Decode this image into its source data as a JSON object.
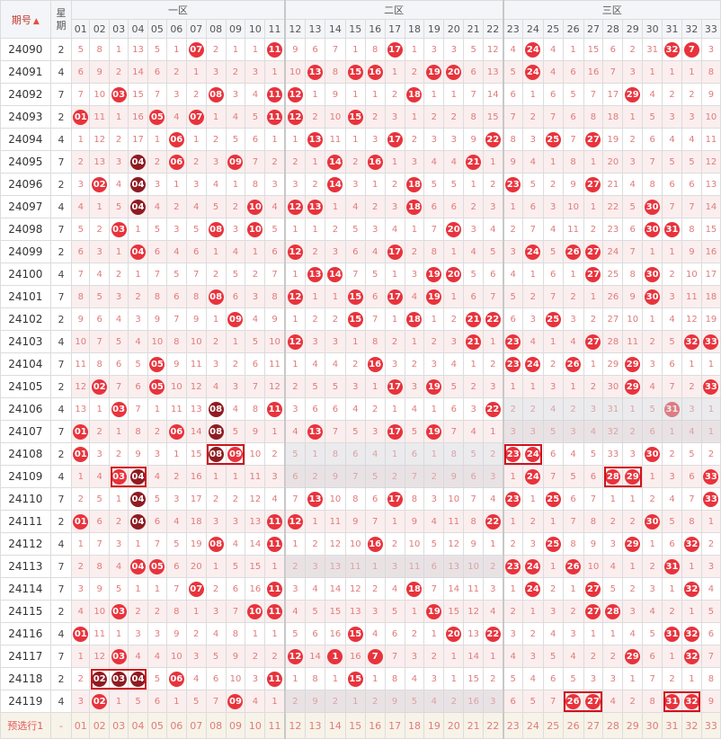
{
  "headers": {
    "issue": "期号",
    "sort_icon": "sort-asc-desc-icon",
    "week": "星期",
    "zones": [
      "一区",
      "二区",
      "三区"
    ],
    "numbers": [
      "01",
      "02",
      "03",
      "04",
      "05",
      "06",
      "07",
      "08",
      "09",
      "10",
      "11",
      "12",
      "13",
      "14",
      "15",
      "16",
      "17",
      "18",
      "19",
      "20",
      "21",
      "22",
      "23",
      "24",
      "25",
      "26",
      "27",
      "28",
      "29",
      "30",
      "31",
      "32",
      "33"
    ]
  },
  "rows": [
    {
      "issue": "24090",
      "wk": "2",
      "c": [
        "5",
        "8",
        "1",
        "13",
        "5",
        "1",
        "07",
        "2",
        "1",
        "1",
        "11",
        "9",
        "6",
        "7",
        "1",
        "8",
        "17",
        "1",
        "3",
        "3",
        "5",
        "12",
        "4",
        "24",
        "4",
        "1",
        "15",
        "6",
        "2",
        "31",
        "32",
        "7",
        "3"
      ],
      "hit": [
        7,
        11,
        17,
        24,
        31,
        32
      ]
    },
    {
      "issue": "24091",
      "wk": "4",
      "c": [
        "6",
        "9",
        "2",
        "14",
        "6",
        "2",
        "1",
        "3",
        "2",
        "3",
        "1",
        "10",
        "13",
        "8",
        "15",
        "16",
        "1",
        "2",
        "19",
        "20",
        "6",
        "13",
        "5",
        "24",
        "4",
        "6",
        "16",
        "7",
        "3",
        "1",
        "1",
        "1",
        "8"
      ],
      "hit": [
        13,
        15,
        16,
        19,
        20,
        24
      ]
    },
    {
      "issue": "24092",
      "wk": "7",
      "c": [
        "7",
        "10",
        "03",
        "15",
        "7",
        "3",
        "2",
        "08",
        "3",
        "4",
        "11",
        "12",
        "1",
        "9",
        "1",
        "1",
        "2",
        "18",
        "1",
        "1",
        "7",
        "14",
        "6",
        "1",
        "6",
        "5",
        "7",
        "17",
        "29",
        "4",
        "2",
        "2",
        "9"
      ],
      "hit": [
        3,
        8,
        11,
        12,
        18,
        29
      ]
    },
    {
      "issue": "24093",
      "wk": "2",
      "c": [
        "01",
        "11",
        "1",
        "16",
        "05",
        "4",
        "07",
        "1",
        "4",
        "5",
        "11",
        "12",
        "2",
        "10",
        "15",
        "2",
        "3",
        "1",
        "2",
        "2",
        "8",
        "15",
        "7",
        "2",
        "7",
        "6",
        "8",
        "18",
        "1",
        "5",
        "3",
        "3",
        "10"
      ],
      "hit": [
        1,
        5,
        7,
        11,
        12,
        15
      ]
    },
    {
      "issue": "24094",
      "wk": "4",
      "c": [
        "1",
        "12",
        "2",
        "17",
        "1",
        "06",
        "1",
        "2",
        "5",
        "6",
        "1",
        "1",
        "13",
        "11",
        "1",
        "3",
        "17",
        "2",
        "3",
        "3",
        "9",
        "22",
        "8",
        "3",
        "25",
        "7",
        "27",
        "19",
        "2",
        "6",
        "4",
        "4",
        "11"
      ],
      "hit": [
        6,
        13,
        17,
        22,
        25,
        27
      ]
    },
    {
      "issue": "24095",
      "wk": "7",
      "c": [
        "2",
        "13",
        "3",
        "04",
        "2",
        "06",
        "2",
        "3",
        "09",
        "7",
        "2",
        "2",
        "1",
        "14",
        "2",
        "16",
        "1",
        "3",
        "4",
        "4",
        "21",
        "1",
        "9",
        "4",
        "1",
        "8",
        "1",
        "20",
        "3",
        "7",
        "5",
        "5",
        "12"
      ],
      "hit": [
        4,
        6,
        9,
        14,
        16,
        21
      ],
      "dark": [
        4
      ]
    },
    {
      "issue": "24096",
      "wk": "2",
      "c": [
        "3",
        "02",
        "4",
        "04",
        "3",
        "1",
        "3",
        "4",
        "1",
        "8",
        "3",
        "3",
        "2",
        "14",
        "3",
        "1",
        "2",
        "18",
        "5",
        "5",
        "1",
        "2",
        "23",
        "5",
        "2",
        "9",
        "27",
        "21",
        "4",
        "8",
        "6",
        "6",
        "13"
      ],
      "hit": [
        2,
        4,
        14,
        18,
        23,
        27
      ],
      "dark": [
        4
      ]
    },
    {
      "issue": "24097",
      "wk": "4",
      "c": [
        "4",
        "1",
        "5",
        "04",
        "4",
        "2",
        "4",
        "5",
        "2",
        "10",
        "4",
        "12",
        "13",
        "1",
        "4",
        "2",
        "3",
        "18",
        "6",
        "6",
        "2",
        "3",
        "1",
        "6",
        "3",
        "10",
        "1",
        "22",
        "5",
        "30",
        "7",
        "7",
        "14"
      ],
      "hit": [
        4,
        10,
        12,
        13,
        18,
        30
      ],
      "dark": [
        4
      ]
    },
    {
      "issue": "24098",
      "wk": "7",
      "c": [
        "5",
        "2",
        "03",
        "1",
        "5",
        "3",
        "5",
        "08",
        "3",
        "10",
        "5",
        "1",
        "1",
        "2",
        "5",
        "3",
        "4",
        "1",
        "7",
        "20",
        "3",
        "4",
        "2",
        "7",
        "4",
        "11",
        "2",
        "23",
        "6",
        "30",
        "31",
        "8",
        "15"
      ],
      "hit": [
        3,
        8,
        10,
        20,
        30,
        31
      ]
    },
    {
      "issue": "24099",
      "wk": "2",
      "c": [
        "6",
        "3",
        "1",
        "04",
        "6",
        "4",
        "6",
        "1",
        "4",
        "1",
        "6",
        "12",
        "2",
        "3",
        "6",
        "4",
        "17",
        "2",
        "8",
        "1",
        "4",
        "5",
        "3",
        "24",
        "5",
        "26",
        "27",
        "24",
        "7",
        "1",
        "1",
        "9",
        "16"
      ],
      "hit": [
        4,
        12,
        17,
        24,
        26,
        27
      ]
    },
    {
      "issue": "24100",
      "wk": "4",
      "c": [
        "7",
        "4",
        "2",
        "1",
        "7",
        "5",
        "7",
        "2",
        "5",
        "2",
        "7",
        "1",
        "13",
        "14",
        "7",
        "5",
        "1",
        "3",
        "19",
        "20",
        "5",
        "6",
        "4",
        "1",
        "6",
        "1",
        "27",
        "25",
        "8",
        "30",
        "2",
        "10",
        "17"
      ],
      "hit": [
        13,
        14,
        19,
        20,
        27,
        30
      ]
    },
    {
      "issue": "24101",
      "wk": "7",
      "c": [
        "8",
        "5",
        "3",
        "2",
        "8",
        "6",
        "8",
        "08",
        "6",
        "3",
        "8",
        "12",
        "1",
        "1",
        "15",
        "6",
        "17",
        "4",
        "19",
        "1",
        "6",
        "7",
        "5",
        "2",
        "7",
        "2",
        "1",
        "26",
        "9",
        "30",
        "3",
        "11",
        "18"
      ],
      "hit": [
        8,
        12,
        15,
        17,
        19,
        30
      ]
    },
    {
      "issue": "24102",
      "wk": "2",
      "c": [
        "9",
        "6",
        "4",
        "3",
        "9",
        "7",
        "9",
        "1",
        "09",
        "4",
        "9",
        "1",
        "2",
        "2",
        "15",
        "7",
        "1",
        "18",
        "1",
        "2",
        "21",
        "22",
        "6",
        "3",
        "25",
        "3",
        "2",
        "27",
        "10",
        "1",
        "4",
        "12",
        "19"
      ],
      "hit": [
        9,
        15,
        18,
        21,
        22,
        25
      ]
    },
    {
      "issue": "24103",
      "wk": "4",
      "c": [
        "10",
        "7",
        "5",
        "4",
        "10",
        "8",
        "10",
        "2",
        "1",
        "5",
        "10",
        "12",
        "3",
        "3",
        "1",
        "8",
        "2",
        "1",
        "2",
        "3",
        "21",
        "1",
        "23",
        "4",
        "1",
        "4",
        "27",
        "28",
        "11",
        "2",
        "5",
        "32",
        "33"
      ],
      "hit": [
        12,
        21,
        23,
        27,
        32,
        33
      ]
    },
    {
      "issue": "24104",
      "wk": "7",
      "c": [
        "11",
        "8",
        "6",
        "5",
        "05",
        "9",
        "11",
        "3",
        "2",
        "6",
        "11",
        "1",
        "4",
        "4",
        "2",
        "16",
        "3",
        "2",
        "3",
        "4",
        "1",
        "2",
        "23",
        "24",
        "2",
        "26",
        "1",
        "29",
        "29",
        "3",
        "6",
        "1",
        "1"
      ],
      "hit": [
        5,
        16,
        23,
        24,
        26,
        29
      ]
    },
    {
      "issue": "24105",
      "wk": "2",
      "c": [
        "12",
        "02",
        "7",
        "6",
        "05",
        "10",
        "12",
        "4",
        "3",
        "7",
        "12",
        "2",
        "5",
        "5",
        "3",
        "1",
        "17",
        "3",
        "19",
        "5",
        "2",
        "3",
        "1",
        "1",
        "3",
        "1",
        "2",
        "30",
        "29",
        "4",
        "7",
        "2",
        "33"
      ],
      "hit": [
        2,
        5,
        17,
        19,
        29,
        33
      ]
    },
    {
      "issue": "24106",
      "wk": "4",
      "c": [
        "13",
        "1",
        "03",
        "7",
        "1",
        "11",
        "13",
        "08",
        "4",
        "8",
        "11",
        "3",
        "6",
        "6",
        "4",
        "2",
        "1",
        "4",
        "1",
        "6",
        "3",
        "22",
        "2",
        "2",
        "4",
        "2",
        "3",
        "31",
        "1",
        "5",
        "31",
        "3",
        "1"
      ],
      "hit": [
        3,
        8,
        11,
        22,
        31
      ],
      "dark": [
        8
      ]
    },
    {
      "issue": "24107",
      "wk": "7",
      "c": [
        "01",
        "2",
        "1",
        "8",
        "2",
        "06",
        "14",
        "08",
        "5",
        "9",
        "1",
        "4",
        "13",
        "7",
        "5",
        "3",
        "17",
        "5",
        "19",
        "7",
        "4",
        "1",
        "3",
        "3",
        "5",
        "3",
        "4",
        "32",
        "2",
        "6",
        "1",
        "4",
        "1"
      ],
      "hit": [
        1,
        6,
        8,
        13,
        17,
        19
      ],
      "dark": [
        8
      ]
    },
    {
      "issue": "24108",
      "wk": "2",
      "c": [
        "01",
        "3",
        "2",
        "9",
        "3",
        "1",
        "15",
        "08",
        "09",
        "10",
        "2",
        "5",
        "1",
        "8",
        "6",
        "4",
        "1",
        "6",
        "1",
        "8",
        "5",
        "2",
        "23",
        "24",
        "6",
        "4",
        "5",
        "33",
        "3",
        "30",
        "2",
        "5",
        "2"
      ],
      "hit": [
        1,
        8,
        9,
        23,
        24,
        30
      ],
      "dark": [
        8
      ]
    },
    {
      "issue": "24109",
      "wk": "4",
      "c": [
        "1",
        "4",
        "03",
        "04",
        "4",
        "2",
        "16",
        "1",
        "1",
        "11",
        "3",
        "6",
        "2",
        "9",
        "7",
        "5",
        "2",
        "7",
        "2",
        "9",
        "6",
        "3",
        "1",
        "24",
        "7",
        "5",
        "6",
        "28",
        "29",
        "1",
        "3",
        "6",
        "33"
      ],
      "hit": [
        3,
        4,
        24,
        28,
        29,
        33
      ],
      "dark": [
        4
      ]
    },
    {
      "issue": "24110",
      "wk": "7",
      "c": [
        "2",
        "5",
        "1",
        "04",
        "5",
        "3",
        "17",
        "2",
        "2",
        "12",
        "4",
        "7",
        "13",
        "10",
        "8",
        "6",
        "17",
        "8",
        "3",
        "10",
        "7",
        "4",
        "23",
        "1",
        "25",
        "6",
        "7",
        "1",
        "1",
        "2",
        "4",
        "7",
        "33"
      ],
      "hit": [
        4,
        13,
        17,
        23,
        25,
        33
      ],
      "dark": [
        4
      ]
    },
    {
      "issue": "24111",
      "wk": "2",
      "c": [
        "01",
        "6",
        "2",
        "04",
        "6",
        "4",
        "18",
        "3",
        "3",
        "13",
        "11",
        "12",
        "1",
        "11",
        "9",
        "7",
        "1",
        "9",
        "4",
        "11",
        "8",
        "22",
        "1",
        "2",
        "1",
        "7",
        "8",
        "2",
        "2",
        "30",
        "5",
        "8",
        "1"
      ],
      "hit": [
        1,
        4,
        11,
        12,
        22,
        30
      ],
      "dark": [
        4
      ]
    },
    {
      "issue": "24112",
      "wk": "4",
      "c": [
        "1",
        "7",
        "3",
        "1",
        "7",
        "5",
        "19",
        "08",
        "4",
        "14",
        "11",
        "1",
        "2",
        "12",
        "10",
        "16",
        "2",
        "10",
        "5",
        "12",
        "9",
        "1",
        "2",
        "3",
        "25",
        "8",
        "9",
        "3",
        "29",
        "1",
        "6",
        "32",
        "2"
      ],
      "hit": [
        8,
        11,
        16,
        25,
        29,
        32
      ]
    },
    {
      "issue": "24113",
      "wk": "7",
      "c": [
        "2",
        "8",
        "4",
        "04",
        "05",
        "6",
        "20",
        "1",
        "5",
        "15",
        "1",
        "2",
        "3",
        "13",
        "11",
        "1",
        "3",
        "11",
        "6",
        "13",
        "10",
        "2",
        "23",
        "24",
        "1",
        "26",
        "10",
        "4",
        "1",
        "2",
        "31",
        "1",
        "3"
      ],
      "hit": [
        4,
        5,
        23,
        24,
        26,
        31
      ]
    },
    {
      "issue": "24114",
      "wk": "7",
      "c": [
        "3",
        "9",
        "5",
        "1",
        "1",
        "7",
        "07",
        "2",
        "6",
        "16",
        "11",
        "3",
        "4",
        "14",
        "12",
        "2",
        "4",
        "18",
        "7",
        "14",
        "11",
        "3",
        "1",
        "24",
        "2",
        "1",
        "27",
        "5",
        "2",
        "3",
        "1",
        "32",
        "4"
      ],
      "hit": [
        7,
        11,
        18,
        24,
        27,
        32
      ]
    },
    {
      "issue": "24115",
      "wk": "2",
      "c": [
        "4",
        "10",
        "03",
        "2",
        "2",
        "8",
        "1",
        "3",
        "7",
        "10",
        "11",
        "4",
        "5",
        "15",
        "13",
        "3",
        "5",
        "1",
        "19",
        "15",
        "12",
        "4",
        "2",
        "1",
        "3",
        "2",
        "27",
        "28",
        "3",
        "4",
        "2",
        "1",
        "5"
      ],
      "hit": [
        3,
        10,
        11,
        19,
        27,
        28
      ]
    },
    {
      "issue": "24116",
      "wk": "4",
      "c": [
        "01",
        "11",
        "1",
        "3",
        "3",
        "9",
        "2",
        "4",
        "8",
        "1",
        "1",
        "5",
        "6",
        "16",
        "15",
        "4",
        "6",
        "2",
        "1",
        "20",
        "13",
        "22",
        "3",
        "2",
        "4",
        "3",
        "1",
        "1",
        "4",
        "5",
        "31",
        "32",
        "6"
      ],
      "hit": [
        1,
        15,
        20,
        22,
        31,
        32
      ]
    },
    {
      "issue": "24117",
      "wk": "7",
      "c": [
        "1",
        "12",
        "03",
        "4",
        "4",
        "10",
        "3",
        "5",
        "9",
        "2",
        "2",
        "12",
        "14",
        "1",
        "16",
        "7",
        "7",
        "3",
        "2",
        "1",
        "14",
        "1",
        "4",
        "3",
        "5",
        "4",
        "2",
        "2",
        "29",
        "6",
        "1",
        "32",
        "7"
      ],
      "hit": [
        3,
        12,
        14,
        16,
        29,
        32
      ]
    },
    {
      "issue": "24118",
      "wk": "2",
      "c": [
        "2",
        "02",
        "03",
        "04",
        "5",
        "06",
        "4",
        "6",
        "10",
        "3",
        "11",
        "1",
        "8",
        "1",
        "15",
        "1",
        "8",
        "4",
        "3",
        "1",
        "15",
        "2",
        "5",
        "4",
        "6",
        "5",
        "3",
        "3",
        "1",
        "7",
        "2",
        "1",
        "8"
      ],
      "hit": [
        2,
        3,
        4,
        6,
        11,
        15
      ],
      "dark": [
        2,
        3,
        4
      ]
    },
    {
      "issue": "24119",
      "wk": "4",
      "c": [
        "3",
        "02",
        "1",
        "5",
        "6",
        "1",
        "5",
        "7",
        "09",
        "4",
        "1",
        "2",
        "9",
        "2",
        "1",
        "2",
        "9",
        "5",
        "4",
        "2",
        "16",
        "3",
        "6",
        "5",
        "7",
        "26",
        "27",
        "4",
        "2",
        "8",
        "31",
        "32",
        "9"
      ],
      "hit": [
        2,
        9,
        26,
        27,
        31,
        32
      ]
    }
  ],
  "prediction": {
    "label": "预选行1",
    "wk": "-"
  }
}
